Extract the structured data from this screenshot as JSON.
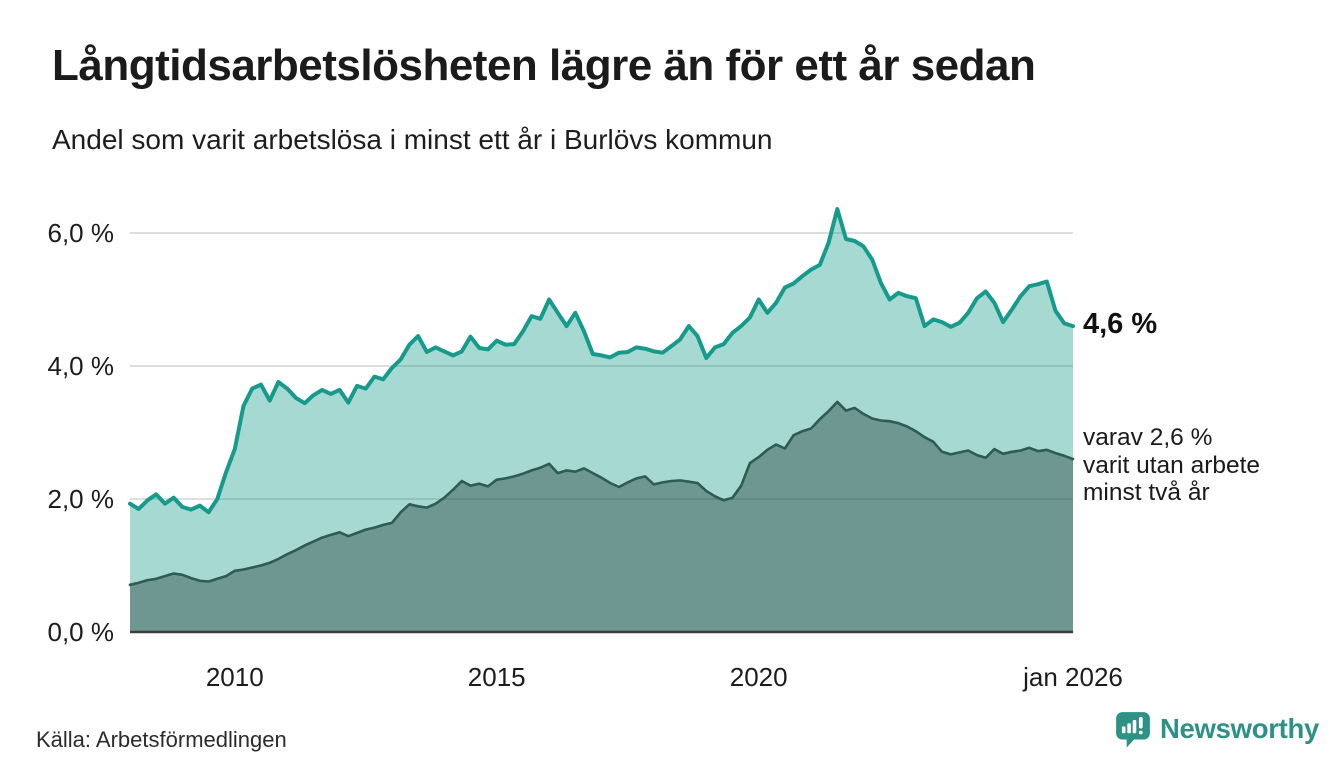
{
  "title": "Långtidsarbetslösheten lägre än för ett år sedan",
  "subtitle": "Andel som varit arbetslösa i minst ett år i Burlövs kommun",
  "source": "Källa: Arbetsförmedlingen",
  "branding": {
    "wordmark": "Newsworthy",
    "icon": "newsworthy-speech-bubble-chart-icon",
    "color": "#2D9186"
  },
  "annotations": {
    "end_value_label": "4,6 %",
    "secondary_lines": [
      "varav 2,6 %",
      "varit utan arbete",
      "minst två år"
    ]
  },
  "colors": {
    "series1_line": "#169A8C",
    "series1_fill": "rgba(23,154,140,0.38)",
    "series2_line": "#2E5C52",
    "series2_fill": "rgba(40,72,62,0.45)",
    "gridline": "#DEDEDE",
    "axis_line": "#3D3D3D",
    "text": "#1A1A1A"
  },
  "chart_data": {
    "type": "area",
    "title": "Långtidsarbetslösheten lägre än för ett år sedan",
    "subtitle": "Andel som varit arbetslösa i minst ett år i Burlövs kommun",
    "x_unit": "decimal_year_monthly_series",
    "x_range": [
      2008.0,
      2026.0
    ],
    "ylim": [
      0,
      6.6
    ],
    "ylabel": "",
    "xlabel": "",
    "grid": "horizontal",
    "legend": "none, direct labels at line ends",
    "y_ticks": [
      0,
      2,
      4,
      6
    ],
    "y_tick_labels": [
      "0,0 %",
      "2,0 %",
      "4,0 %",
      "6,0 %"
    ],
    "x_ticks": [
      2010,
      2015,
      2020,
      2026
    ],
    "x_tick_labels": [
      "2010",
      "2015",
      "2020",
      "jan 2026"
    ],
    "series": [
      {
        "name": "Andel arbetslösa minst ett år",
        "end_value_pct": 4.6,
        "values": [
          1.93,
          1.85,
          1.98,
          2.07,
          1.93,
          2.02,
          1.88,
          1.84,
          1.9,
          1.8,
          2.0,
          2.4,
          2.75,
          3.4,
          3.66,
          3.72,
          3.48,
          3.76,
          3.66,
          3.52,
          3.44,
          3.56,
          3.64,
          3.58,
          3.64,
          3.45,
          3.7,
          3.66,
          3.84,
          3.8,
          3.97,
          4.1,
          4.32,
          4.45,
          4.21,
          4.28,
          4.22,
          4.16,
          4.22,
          4.44,
          4.27,
          4.25,
          4.38,
          4.32,
          4.33,
          4.52,
          4.75,
          4.71,
          5.0,
          4.8,
          4.6,
          4.8,
          4.52,
          4.18,
          4.16,
          4.13,
          4.2,
          4.21,
          4.28,
          4.26,
          4.22,
          4.2,
          4.3,
          4.4,
          4.6,
          4.45,
          4.12,
          4.28,
          4.33,
          4.5,
          4.6,
          4.73,
          5.0,
          4.8,
          4.95,
          5.18,
          5.24,
          5.35,
          5.45,
          5.52,
          5.85,
          6.36,
          5.91,
          5.88,
          5.8,
          5.6,
          5.25,
          5.0,
          5.1,
          5.05,
          5.02,
          4.6,
          4.7,
          4.66,
          4.59,
          4.65,
          4.8,
          5.02,
          5.12,
          4.95,
          4.66,
          4.85,
          5.05,
          5.2,
          5.23,
          5.27,
          4.83,
          4.64,
          4.6
        ]
      },
      {
        "name": "varav utan arbete minst två år",
        "end_value_pct": 2.6,
        "values": [
          0.71,
          0.74,
          0.78,
          0.8,
          0.84,
          0.88,
          0.86,
          0.81,
          0.77,
          0.76,
          0.8,
          0.84,
          0.92,
          0.94,
          0.97,
          1.0,
          1.04,
          1.1,
          1.17,
          1.23,
          1.3,
          1.36,
          1.42,
          1.46,
          1.5,
          1.44,
          1.49,
          1.54,
          1.57,
          1.61,
          1.64,
          1.8,
          1.92,
          1.89,
          1.87,
          1.93,
          2.02,
          2.14,
          2.27,
          2.2,
          2.23,
          2.19,
          2.29,
          2.31,
          2.34,
          2.38,
          2.43,
          2.47,
          2.53,
          2.39,
          2.43,
          2.41,
          2.46,
          2.39,
          2.32,
          2.24,
          2.18,
          2.25,
          2.31,
          2.34,
          2.22,
          2.25,
          2.27,
          2.28,
          2.26,
          2.24,
          2.12,
          2.04,
          1.98,
          2.02,
          2.2,
          2.54,
          2.63,
          2.74,
          2.82,
          2.76,
          2.96,
          3.02,
          3.06,
          3.2,
          3.32,
          3.46,
          3.33,
          3.37,
          3.28,
          3.21,
          3.18,
          3.17,
          3.14,
          3.09,
          3.02,
          2.93,
          2.86,
          2.71,
          2.67,
          2.7,
          2.73,
          2.66,
          2.62,
          2.75,
          2.68,
          2.71,
          2.73,
          2.77,
          2.72,
          2.74,
          2.69,
          2.65,
          2.6
        ]
      }
    ]
  }
}
